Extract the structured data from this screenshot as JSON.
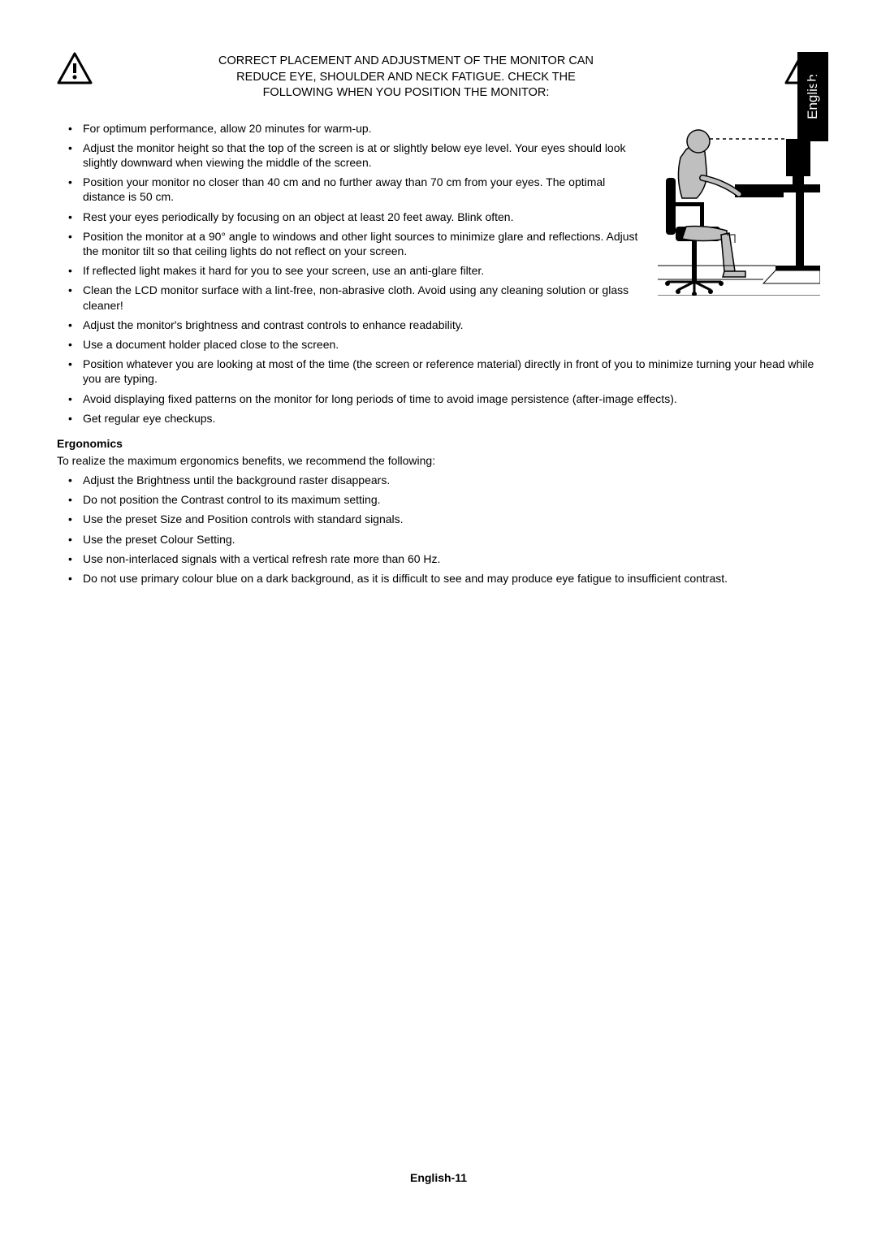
{
  "language_tab": "English",
  "header": {
    "line1": "CORRECT PLACEMENT AND ADJUSTMENT OF THE MONITOR CAN",
    "line2": "REDUCE EYE, SHOULDER AND NECK FATIGUE. CHECK THE",
    "line3": "FOLLOWING WHEN YOU POSITION THE MONITOR:"
  },
  "bullets_top": [
    "For optimum performance, allow 20 minutes for warm-up.",
    "Adjust the monitor height so that the top of the screen is at or slightly below eye level. Your eyes should look slightly downward when viewing the middle of the screen.",
    "Position your monitor no closer than 40 cm and no further away than 70 cm from your eyes. The optimal distance is 50 cm.",
    "Rest your eyes periodically by focusing on an object at least 20 feet away. Blink often.",
    "Position the monitor at a 90° angle to windows and other light sources to minimize glare and reflections. Adjust the monitor tilt so that ceiling lights do not reflect on your screen.",
    "If reflected light makes it hard for you to see your screen, use an anti-glare filter.",
    "Clean the LCD monitor surface with a lint-free, non-abrasive cloth. Avoid using any cleaning solution or glass cleaner!",
    "Adjust the monitor's brightness and contrast controls to enhance readability.",
    "Use a document holder placed close to the screen.",
    "Position whatever you are looking at most of the time (the screen or reference material) directly in front of you to minimize turning your head while you are typing.",
    "Avoid displaying fixed patterns on the monitor for long periods of time to avoid image persistence (after-image effects).",
    "Get regular eye checkups."
  ],
  "ergonomics": {
    "heading": "Ergonomics",
    "intro": "To realize the maximum ergonomics benefits, we recommend the following:",
    "bullets": [
      "Adjust the Brightness until the background raster disappears.",
      "Do not position the Contrast control to its maximum setting.",
      "Use the preset Size and Position controls with standard signals.",
      "Use the preset Colour Setting.",
      "Use non-interlaced signals with a vertical refresh rate more than 60 Hz.",
      "Do not use primary colour blue on a dark background, as it is difficult to see and may produce eye fatigue to insufficient contrast."
    ]
  },
  "footer": "English-11",
  "colors": {
    "text": "#000000",
    "bg": "#ffffff",
    "tab_bg": "#000000",
    "tab_text": "#ffffff",
    "diagram_fill": "#000000",
    "diagram_grey": "#bfbfbf"
  }
}
